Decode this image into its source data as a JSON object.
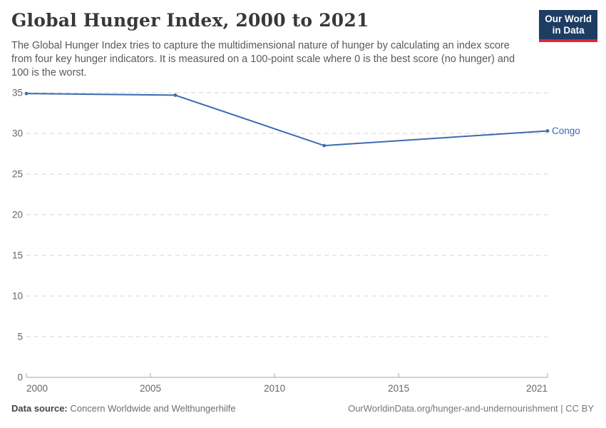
{
  "header": {
    "title": "Global Hunger Index, 2000 to 2021",
    "subtitle": "The Global Hunger Index tries to capture the multidimensional nature of hunger by calculating an index score from four key hunger indicators. It is measured on a 100-point scale where 0 is the best score (no hunger) and 100 is the worst.",
    "logo": {
      "line1": "Our World",
      "line2": "in Data",
      "bg_color": "#1d3d63",
      "accent_color": "#e0243a"
    }
  },
  "chart_data": {
    "type": "line",
    "title": "Global Hunger Index, 2000 to 2021",
    "x": [
      2000,
      2006,
      2012,
      2021
    ],
    "series": [
      {
        "name": "Congo",
        "values": [
          34.9,
          34.7,
          28.5,
          30.3
        ],
        "color": "#3e6ab0"
      }
    ],
    "xlabel": "",
    "ylabel": "",
    "xlim": [
      2000,
      2021
    ],
    "ylim": [
      0,
      35
    ],
    "y_ticks": [
      0,
      5,
      10,
      15,
      20,
      25,
      30,
      35
    ],
    "x_ticks": [
      2000,
      2005,
      2010,
      2015,
      2021
    ],
    "grid": "horizontal-dashed",
    "legend_position": "end-of-line-label",
    "end_label": "Congo",
    "colors": {
      "line": "#3e6ab0",
      "gridline": "#d5d5d5",
      "axis": "#a5a5a5",
      "tick_text": "#666666"
    }
  },
  "footer": {
    "datasource_label": "Data source:",
    "datasource_value": " Concern Worldwide and Welthungerhilfe",
    "url_text": "OurWorldinData.org/hunger-and-undernourishment | CC BY"
  }
}
